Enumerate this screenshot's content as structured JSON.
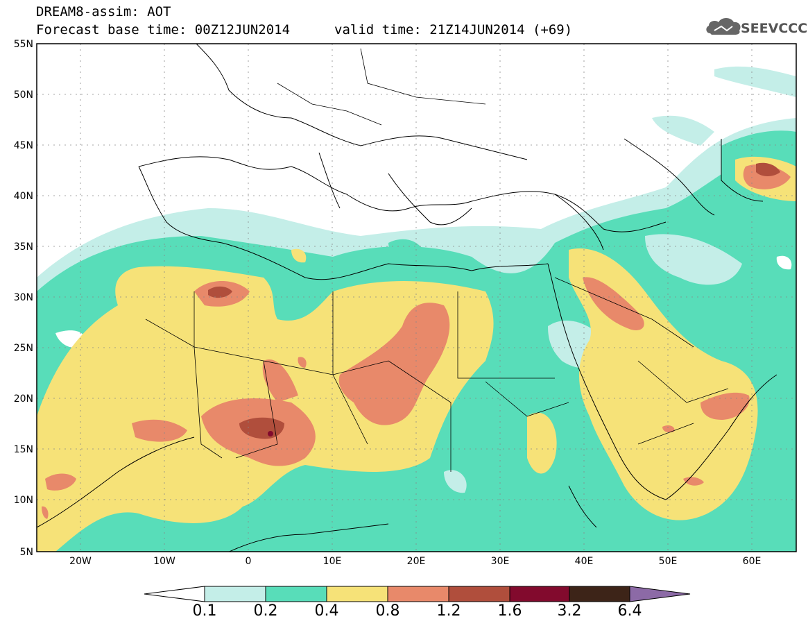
{
  "title": {
    "line1": "DREAM8-assim: AOT",
    "line2": "Forecast base time: 00Z12JUN2014",
    "valid": "valid time: 21Z14JUN2014 (+69)"
  },
  "logo": {
    "text": "SEEVCCC",
    "icon": "cloud-icon"
  },
  "axes": {
    "lat_labels": [
      "55N",
      "50N",
      "45N",
      "40N",
      "35N",
      "30N",
      "25N",
      "20N",
      "15N",
      "10N",
      "5N"
    ],
    "lon_labels": [
      "20W",
      "10W",
      "0",
      "10E",
      "20E",
      "30E",
      "40E",
      "50E",
      "60E"
    ],
    "lat_range": [
      5,
      55
    ],
    "lon_range": [
      -25,
      65
    ]
  },
  "legend": {
    "labels": [
      "0.1",
      "0.2",
      "0.4",
      "0.8",
      "1.2",
      "1.6",
      "3.2",
      "6.4"
    ],
    "colors": [
      "#ffffff",
      "#c4eee8",
      "#58ddb9",
      "#f6e278",
      "#e8896a",
      "#b04e3c",
      "#820a2d",
      "#3d2418",
      "#8c6aa6"
    ]
  }
}
